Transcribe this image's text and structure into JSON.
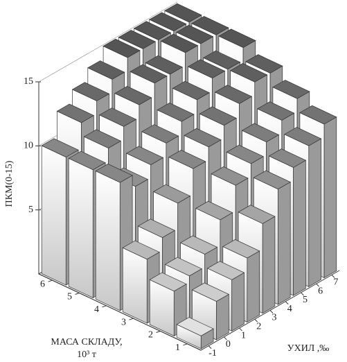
{
  "chart_data": {
    "type": "bar3d",
    "xlabel": "УХИЛ ,‰",
    "ylabel": [
      "МАСА СКЛАДУ,",
      "10³ т"
    ],
    "zlabel": "ПКМ(0-15)",
    "x": [
      -1,
      0,
      1,
      2,
      3,
      4,
      5,
      6,
      7
    ],
    "y": [
      1,
      2,
      3,
      4,
      5,
      6
    ],
    "values": [
      [
        1,
        3,
        4,
        5,
        7,
        9,
        10,
        11,
        12
      ],
      [
        3.5,
        4,
        5,
        7,
        9,
        10,
        11,
        12,
        13
      ],
      [
        5,
        6,
        8,
        10,
        11,
        12,
        13,
        14,
        14
      ],
      [
        10,
        9,
        10,
        11,
        12,
        13,
        14,
        14,
        15
      ],
      [
        10,
        11,
        12,
        13,
        14,
        14,
        15,
        15,
        15
      ],
      [
        10,
        12,
        13,
        14,
        15,
        15,
        15,
        15,
        15
      ]
    ],
    "xlim": [
      -1.5,
      7.5
    ],
    "ylim": [
      0.5,
      6.5
    ],
    "zlim": [
      0,
      15
    ],
    "xticks": [
      -1,
      0,
      1,
      2,
      3,
      4,
      5,
      6,
      7
    ],
    "yticks": [
      1,
      2,
      3,
      4,
      5,
      6
    ],
    "zticks": [
      5,
      10,
      15
    ],
    "color": "#9a9a9a"
  }
}
